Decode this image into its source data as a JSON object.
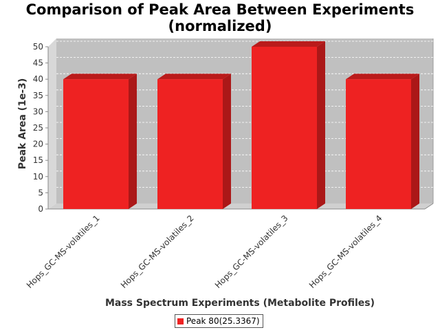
{
  "chart_data": {
    "type": "bar",
    "title_line1": "Comparison of Peak Area Between Experiments",
    "title_line2": "(normalized)",
    "xlabel": "Mass Spectrum Experiments (Metabolite Profiles)",
    "ylabel": "Peak Area (1e-3)",
    "categories": [
      "Hops_GC-MS-volatiles_1",
      "Hops_GC-MS-volatiles_2",
      "Hops_GC-MS-volatiles_3",
      "Hops_GC-MS-volatiles_4"
    ],
    "series": [
      {
        "name": "Peak 80(25.3367)",
        "values": [
          40,
          40,
          50,
          40
        ],
        "color": "#ee2222"
      }
    ],
    "ylim": [
      0,
      50
    ],
    "yticks": [
      0,
      5,
      10,
      15,
      20,
      25,
      30,
      35,
      40,
      45,
      50
    ],
    "grid": true,
    "legend": "bottom-center",
    "plot_background": "#c0c0c0"
  }
}
